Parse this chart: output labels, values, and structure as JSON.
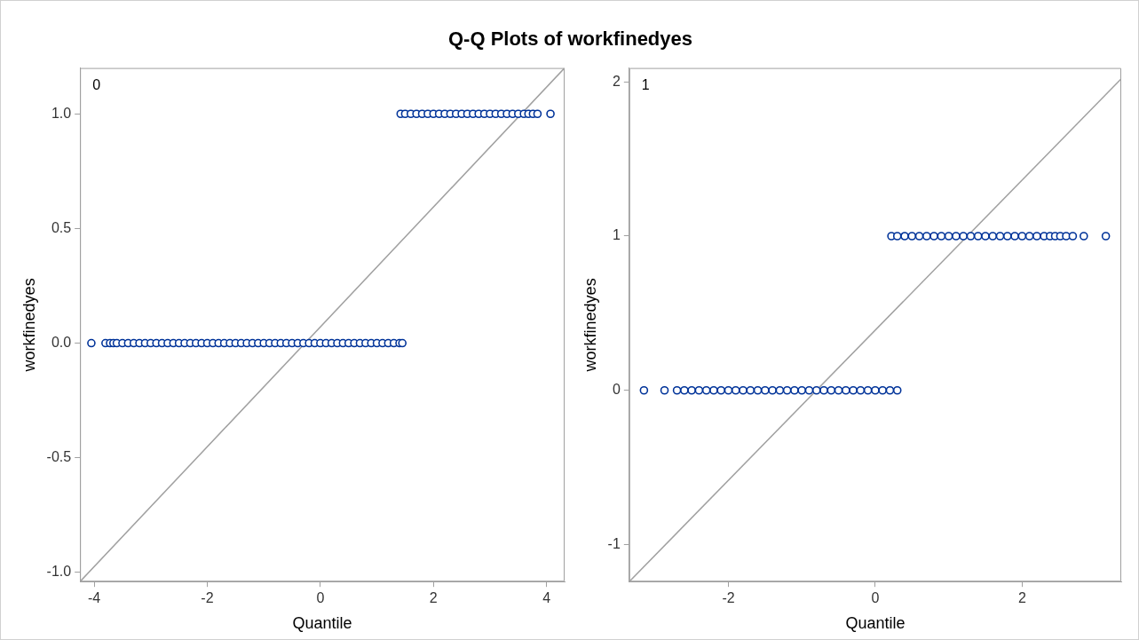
{
  "chart_data": [
    {
      "type": "scatter",
      "title": "Q-Q Plots of workfinedyes",
      "xlabel": "Quantile",
      "ylabel": "workfinedyes",
      "annotations": [
        "0"
      ],
      "marker": "circle",
      "grid": false,
      "xlim": [
        -4.25,
        4.32
      ],
      "ylim": [
        -1.04,
        1.2
      ],
      "xticks": [
        -4,
        -2,
        0,
        2,
        4
      ],
      "yticks": [
        {
          "value": -1,
          "label": "-1.0"
        },
        {
          "value": -0.5,
          "label": "-0.5"
        },
        {
          "value": 0,
          "label": "0.0"
        },
        {
          "value": 0.5,
          "label": "0.5"
        },
        {
          "value": 1,
          "label": "1.0"
        }
      ],
      "series": [
        {
          "color": "#003399",
          "x": [
            -4.05,
            -3.8,
            -3.72,
            -3.66,
            -3.6,
            -3.5,
            -3.4,
            -3.3,
            -3.2,
            -3.1,
            -3,
            -2.9,
            -2.8,
            -2.7,
            -2.6,
            -2.5,
            -2.4,
            -2.3,
            -2.2,
            -2.1,
            -2,
            -1.9,
            -1.8,
            -1.7,
            -1.6,
            -1.5,
            -1.4,
            -1.3,
            -1.2,
            -1.1,
            -1,
            -0.9,
            -0.8,
            -0.7,
            -0.6,
            -0.5,
            -0.4,
            -0.3,
            -0.2,
            -0.1,
            0,
            0.1,
            0.2,
            0.3,
            0.4,
            0.5,
            0.6,
            0.7,
            0.8,
            0.9,
            1,
            1.1,
            1.2,
            1.3,
            1.4,
            1.45
          ],
          "values": [
            0,
            0,
            0,
            0,
            0,
            0,
            0,
            0,
            0,
            0,
            0,
            0,
            0,
            0,
            0,
            0,
            0,
            0,
            0,
            0,
            0,
            0,
            0,
            0,
            0,
            0,
            0,
            0,
            0,
            0,
            0,
            0,
            0,
            0,
            0,
            0,
            0,
            0,
            0,
            0,
            0,
            0,
            0,
            0,
            0,
            0,
            0,
            0,
            0,
            0,
            0,
            0,
            0,
            0,
            0,
            0
          ]
        },
        {
          "color": "#003399",
          "x": [
            1.42,
            1.5,
            1.6,
            1.7,
            1.8,
            1.9,
            2,
            2.1,
            2.2,
            2.3,
            2.4,
            2.5,
            2.6,
            2.7,
            2.8,
            2.9,
            3,
            3.1,
            3.2,
            3.3,
            3.4,
            3.5,
            3.6,
            3.68,
            3.76,
            3.84,
            4.07
          ],
          "values": [
            1,
            1,
            1,
            1,
            1,
            1,
            1,
            1,
            1,
            1,
            1,
            1,
            1,
            1,
            1,
            1,
            1,
            1,
            1,
            1,
            1,
            1,
            1,
            1,
            1,
            1,
            1
          ]
        },
        {
          "type": "line",
          "color": "#a0a0a0",
          "marker": "none",
          "x": [
            -4.25,
            4.32
          ],
          "values": [
            -1.04,
            1.2
          ]
        }
      ]
    },
    {
      "type": "scatter",
      "xlabel": "Quantile",
      "ylabel": "workfinedyes",
      "annotations": [
        "1"
      ],
      "marker": "circle",
      "grid": false,
      "xlim": [
        -3.35,
        3.35
      ],
      "ylim": [
        -1.24,
        2.09
      ],
      "xticks": [
        -2,
        0,
        2
      ],
      "yticks": [
        -1,
        0,
        1,
        2
      ],
      "series": [
        {
          "color": "#003399",
          "x": [
            -3.15,
            -2.87,
            -2.7,
            -2.6,
            -2.5,
            -2.4,
            -2.3,
            -2.2,
            -2.1,
            -2,
            -1.9,
            -1.8,
            -1.7,
            -1.6,
            -1.5,
            -1.4,
            -1.3,
            -1.2,
            -1.1,
            -1,
            -0.9,
            -0.8,
            -0.7,
            -0.6,
            -0.5,
            -0.4,
            -0.3,
            -0.2,
            -0.1,
            0,
            0.1,
            0.2,
            0.3
          ],
          "values": [
            0,
            0,
            0,
            0,
            0,
            0,
            0,
            0,
            0,
            0,
            0,
            0,
            0,
            0,
            0,
            0,
            0,
            0,
            0,
            0,
            0,
            0,
            0,
            0,
            0,
            0,
            0,
            0,
            0,
            0,
            0,
            0,
            0
          ]
        },
        {
          "color": "#003399",
          "x": [
            0.22,
            0.3,
            0.4,
            0.5,
            0.6,
            0.7,
            0.8,
            0.9,
            1,
            1.1,
            1.2,
            1.3,
            1.4,
            1.5,
            1.6,
            1.7,
            1.8,
            1.9,
            2,
            2.1,
            2.2,
            2.3,
            2.38,
            2.45,
            2.52,
            2.6,
            2.69,
            2.84,
            3.14
          ],
          "values": [
            1,
            1,
            1,
            1,
            1,
            1,
            1,
            1,
            1,
            1,
            1,
            1,
            1,
            1,
            1,
            1,
            1,
            1,
            1,
            1,
            1,
            1,
            1,
            1,
            1,
            1,
            1,
            1,
            1
          ]
        },
        {
          "type": "line",
          "color": "#a0a0a0",
          "marker": "none",
          "x": [
            -3.35,
            3.35
          ],
          "values": [
            -1.24,
            2.02
          ]
        }
      ]
    }
  ]
}
